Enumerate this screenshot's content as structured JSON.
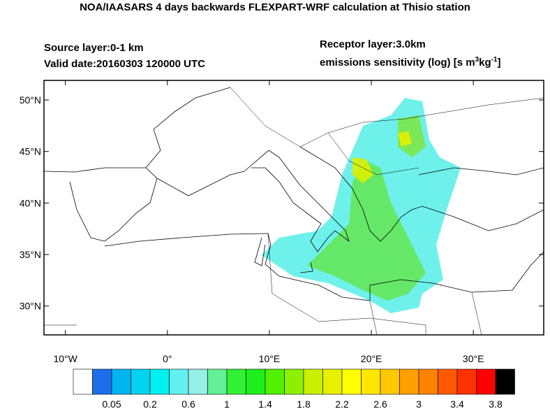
{
  "header": {
    "title": "NOA/IAASARS 4 days backwards FLEXPART-WRF calculation at Thisio station",
    "source_layer": "Source layer:0-1 km",
    "valid_date": "Valid date:20160303 120000 UTC",
    "receptor_layer": "Receptor layer:3.0km",
    "units": [
      "emissions sensitivity (log) [s m",
      "3",
      "kg",
      "-1",
      "]"
    ]
  },
  "map": {
    "lon_range": [
      -12.1,
      36.9
    ],
    "lat_range": [
      27.2,
      51.9
    ],
    "lon_ticks": [
      {
        "value": -10,
        "label": "10°W"
      },
      {
        "value": 0,
        "label": "0°"
      },
      {
        "value": 10,
        "label": "10°E"
      },
      {
        "value": 20,
        "label": "20°E"
      },
      {
        "value": 30,
        "label": "30°E"
      }
    ],
    "lat_ticks": [
      {
        "value": 30,
        "label": "30°N"
      },
      {
        "value": 35,
        "label": "35°N"
      },
      {
        "value": 40,
        "label": "40°N"
      },
      {
        "value": 45,
        "label": "45°N"
      },
      {
        "value": 50,
        "label": "50°N"
      }
    ]
  },
  "colorbar": {
    "colors": [
      "#ffffff",
      "#1e6eeb",
      "#00b4f0",
      "#00d2f0",
      "#00f0f0",
      "#64f0f0",
      "#96f0e6",
      "#64f096",
      "#32f032",
      "#1ef01e",
      "#50f000",
      "#8cf000",
      "#c8f000",
      "#e6f000",
      "#ffff00",
      "#ffe600",
      "#ffc800",
      "#ffa000",
      "#ff8200",
      "#ff5a00",
      "#ff3200",
      "#ff0000",
      "#000000"
    ],
    "labels": [
      "0.05",
      "0.2",
      "0.6",
      "1",
      "1.4",
      "1.8",
      "2.2",
      "2.6",
      "3",
      "3.4",
      "3.8"
    ]
  }
}
